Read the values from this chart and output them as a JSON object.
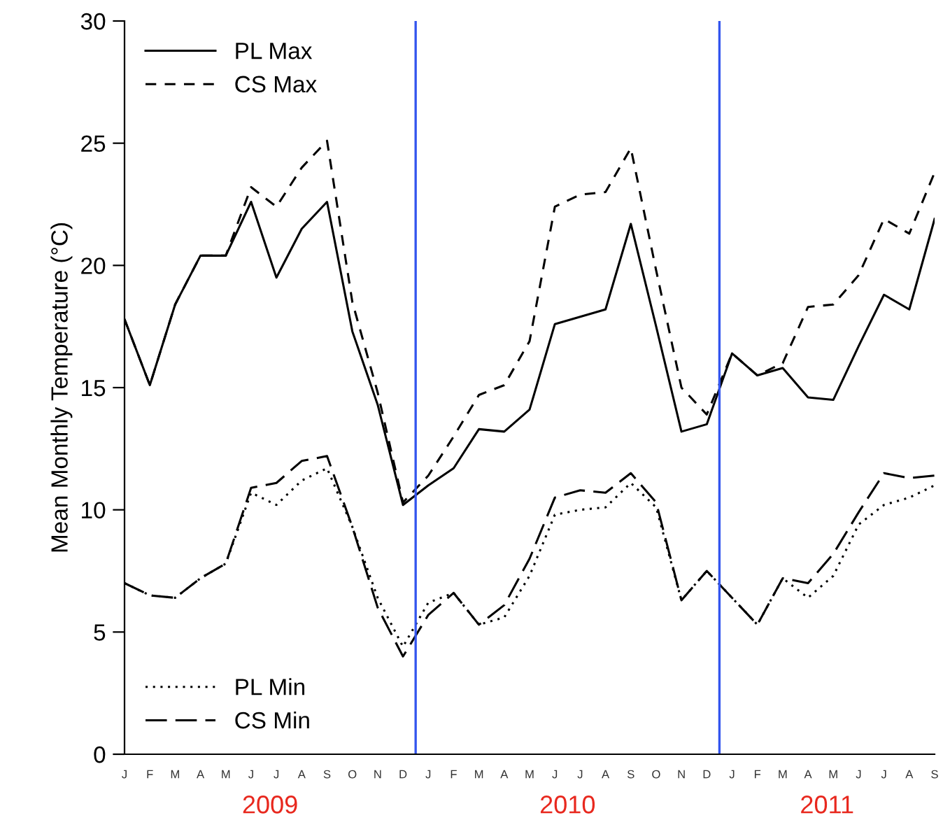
{
  "chart_data": {
    "type": "line",
    "ylabel": "Mean Monthly Temperature (°C)",
    "categories": [
      "J",
      "F",
      "M",
      "A",
      "M",
      "J",
      "J",
      "A",
      "S",
      "O",
      "N",
      "D",
      "J",
      "F",
      "M",
      "A",
      "M",
      "J",
      "J",
      "A",
      "S",
      "O",
      "N",
      "D",
      "J",
      "F",
      "M",
      "A",
      "M",
      "J",
      "J",
      "A",
      "S"
    ],
    "ylim": [
      0,
      30
    ],
    "yticks": [
      0,
      5,
      10,
      15,
      20,
      25,
      30
    ],
    "series": [
      {
        "name": "PL Max",
        "color": "#000000",
        "line_style": "solid",
        "values": [
          17.8,
          15.1,
          18.4,
          20.4,
          20.4,
          22.6,
          19.5,
          21.5,
          22.6,
          17.3,
          14.3,
          10.2,
          11.0,
          11.7,
          13.3,
          13.2,
          14.1,
          17.6,
          17.9,
          18.2,
          21.7,
          17.5,
          13.2,
          13.5,
          16.4,
          15.5,
          15.8,
          14.6,
          14.5,
          16.7,
          18.8,
          18.2,
          21.9
        ]
      },
      {
        "name": "CS Max",
        "color": "#000000",
        "line_style": "dashed",
        "values": [
          17.8,
          15.1,
          18.4,
          20.4,
          20.4,
          23.2,
          22.4,
          24.0,
          25.1,
          18.5,
          14.8,
          10.3,
          11.4,
          13.0,
          14.7,
          15.1,
          16.9,
          22.4,
          22.9,
          23.0,
          24.8,
          19.8,
          15.0,
          13.9,
          16.4,
          15.5,
          16.0,
          18.3,
          18.4,
          19.6,
          21.9,
          21.3,
          23.8
        ]
      },
      {
        "name": "PL Min",
        "color": "#000000",
        "line_style": "dotted",
        "values": [
          7.0,
          6.5,
          6.4,
          7.2,
          7.8,
          10.7,
          10.2,
          11.2,
          11.7,
          9.3,
          6.4,
          4.4,
          6.2,
          6.6,
          5.3,
          5.6,
          7.3,
          9.8,
          10.0,
          10.1,
          11.1,
          10.1,
          6.3,
          7.5,
          6.4,
          5.3,
          7.2,
          6.4,
          7.3,
          9.4,
          10.2,
          10.5,
          11.0
        ]
      },
      {
        "name": "CS Min",
        "color": "#000000",
        "line_style": "longdash",
        "values": [
          7.0,
          6.5,
          6.4,
          7.2,
          7.8,
          10.9,
          11.1,
          12.0,
          12.2,
          9.3,
          6.0,
          4.0,
          5.7,
          6.6,
          5.3,
          6.1,
          8.0,
          10.5,
          10.8,
          10.7,
          11.5,
          10.3,
          6.3,
          7.5,
          6.4,
          5.3,
          7.2,
          7.0,
          8.2,
          9.9,
          11.5,
          11.3,
          11.4
        ]
      }
    ],
    "annotations": [
      "2009",
      "2010",
      "2011"
    ],
    "legend": "top left",
    "grid": false,
    "marker": "none"
  }
}
